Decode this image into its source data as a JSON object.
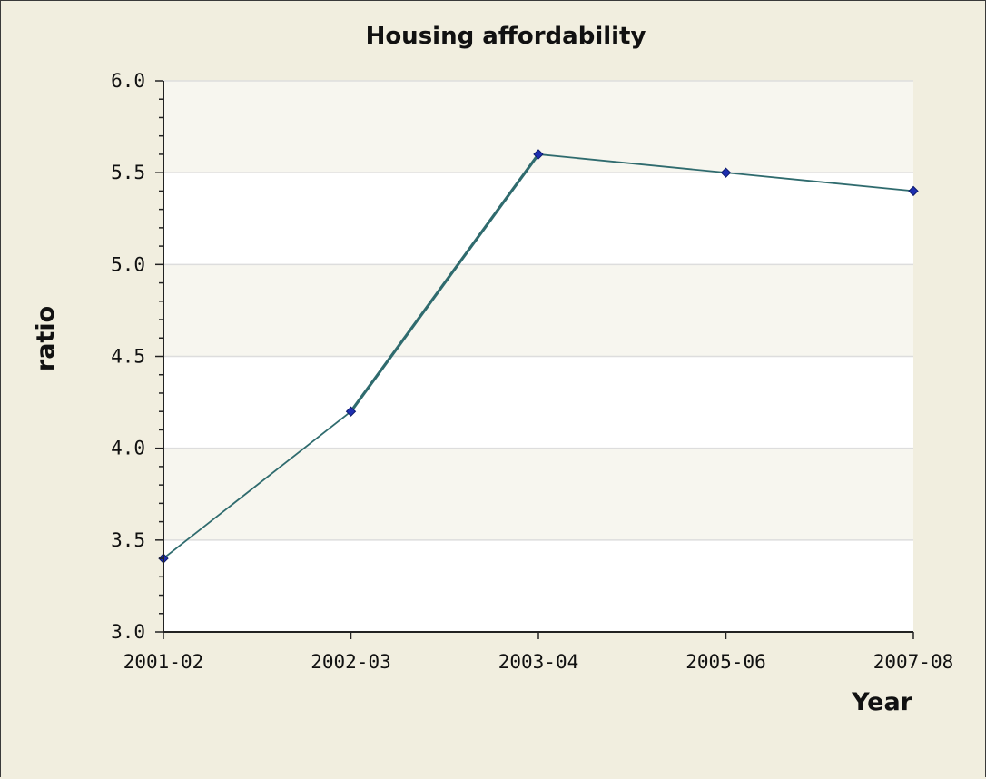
{
  "chart_data": {
    "type": "line",
    "title": "Housing affordability",
    "xlabel": "Year",
    "ylabel": "ratio",
    "categories": [
      "2001-02",
      "2002-03",
      "2003-04",
      "2005-06",
      "2007-08"
    ],
    "series": [
      {
        "values": [
          3.4,
          4.2,
          5.6,
          5.5,
          5.4
        ]
      }
    ],
    "ylim": [
      3.0,
      6.0
    ],
    "yticks": [
      "3.0",
      "3.5",
      "4.0",
      "4.5",
      "5.0",
      "5.5",
      "6.0"
    ],
    "grid": true,
    "legend": "none",
    "colors": {
      "background": "#f1eedf",
      "plot_band_light": "#ffffff",
      "plot_band_dark": "#f7f6ef",
      "gridline": "#dddddd",
      "line": "#2f6b6e",
      "marker": "#1e2fb0",
      "axis": "#222222"
    }
  }
}
